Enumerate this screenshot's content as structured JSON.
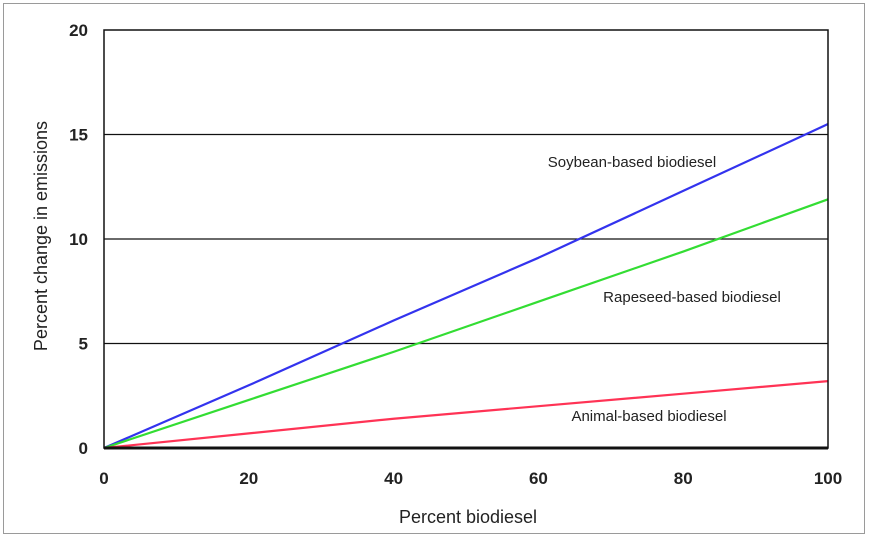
{
  "chart_data": {
    "type": "line",
    "title": "",
    "xlabel": "Percent biodiesel",
    "ylabel": "Percent change in emissions",
    "xlim": [
      0,
      100
    ],
    "ylim": [
      0,
      20
    ],
    "xticks": [
      0,
      20,
      40,
      60,
      80,
      100
    ],
    "yticks": [
      0,
      5,
      10,
      15,
      20
    ],
    "grid": "horizontal",
    "legend": "none",
    "series": [
      {
        "name": "Soybean-based biodiesel",
        "color": "#3333ee",
        "x": [
          0,
          20,
          40,
          60,
          80,
          100
        ],
        "y": [
          0,
          3.0,
          6.1,
          9.1,
          12.3,
          15.5
        ]
      },
      {
        "name": "Rapeseed-based biodiesel",
        "color": "#33dd33",
        "x": [
          0,
          20,
          40,
          60,
          80,
          100
        ],
        "y": [
          0,
          2.3,
          4.6,
          7.0,
          9.4,
          11.9
        ]
      },
      {
        "name": "Animal-based biodiesel",
        "color": "#ff3355",
        "x": [
          0,
          20,
          40,
          60,
          80,
          100
        ],
        "y": [
          0,
          0.7,
          1.4,
          2.0,
          2.6,
          3.2
        ]
      }
    ]
  }
}
